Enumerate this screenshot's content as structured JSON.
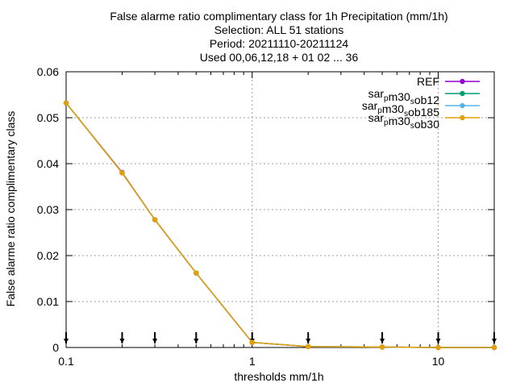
{
  "chart_data": {
    "type": "line",
    "title_lines": [
      "False alarme ratio complimentary class  for 1h Precipitation (mm/1h)",
      "Selection: ALL     51 stations",
      "Period: 20211110-20211124",
      "Used 00,06,12,18 + 01 02 ... 36"
    ],
    "xlabel": "thresholds mm/1h",
    "ylabel": "False alarme ratio complimentary class",
    "x_scale": "log",
    "xlim": [
      0.1,
      20
    ],
    "ylim": [
      0,
      0.06
    ],
    "grid": true,
    "legend_position": "top-right",
    "x_ticks": [
      0.1,
      1,
      10
    ],
    "x_tick_labels": [
      "0.1",
      "1",
      "10"
    ],
    "y_ticks": [
      0,
      0.01,
      0.02,
      0.03,
      0.04,
      0.05,
      0.06
    ],
    "y_tick_labels": [
      "0",
      "0.01",
      "0.02",
      "0.03",
      "0.04",
      "0.05",
      "0.06"
    ],
    "x": [
      0.1,
      0.2,
      0.3,
      0.5,
      1,
      2,
      5,
      10,
      20
    ],
    "series": [
      {
        "name": "REF",
        "name_parts": [
          [
            "REF",
            "normal"
          ]
        ],
        "color": "#9400d3",
        "values": [
          0.0532,
          0.0381,
          0.0278,
          0.0162,
          0.0011,
          0.0002,
          0.0001,
          0.0,
          0.0
        ]
      },
      {
        "name": "sarpm30sob12",
        "name_parts": [
          [
            "sar",
            "normal"
          ],
          [
            "p",
            "sub"
          ],
          [
            "m30",
            "normal"
          ],
          [
            "s",
            "sub"
          ],
          [
            "ob12",
            "normal"
          ]
        ],
        "color": "#009e73",
        "values": [
          0.0532,
          0.038,
          0.0278,
          0.0162,
          0.0011,
          0.0002,
          0.0001,
          0.0,
          0.0
        ]
      },
      {
        "name": "sarpm30sob185",
        "name_parts": [
          [
            "sar",
            "normal"
          ],
          [
            "p",
            "sub"
          ],
          [
            "m30",
            "normal"
          ],
          [
            "s",
            "sub"
          ],
          [
            "ob185",
            "normal"
          ]
        ],
        "color": "#56b4e9",
        "values": [
          0.0532,
          0.038,
          0.0278,
          0.0162,
          0.0011,
          0.0002,
          0.0001,
          0.0,
          0.0
        ]
      },
      {
        "name": "sarpm30sob30",
        "name_parts": [
          [
            "sar",
            "normal"
          ],
          [
            "p",
            "sub"
          ],
          [
            "m30",
            "normal"
          ],
          [
            "s",
            "sub"
          ],
          [
            "ob30",
            "normal"
          ]
        ],
        "color": "#e69f00",
        "values": [
          0.0532,
          0.038,
          0.0278,
          0.0162,
          0.0011,
          0.0002,
          0.0001,
          0.0,
          0.0
        ]
      }
    ],
    "threshold_markers_x": [
      0.1,
      0.2,
      0.3,
      0.5,
      1,
      2,
      5,
      10,
      20
    ]
  }
}
